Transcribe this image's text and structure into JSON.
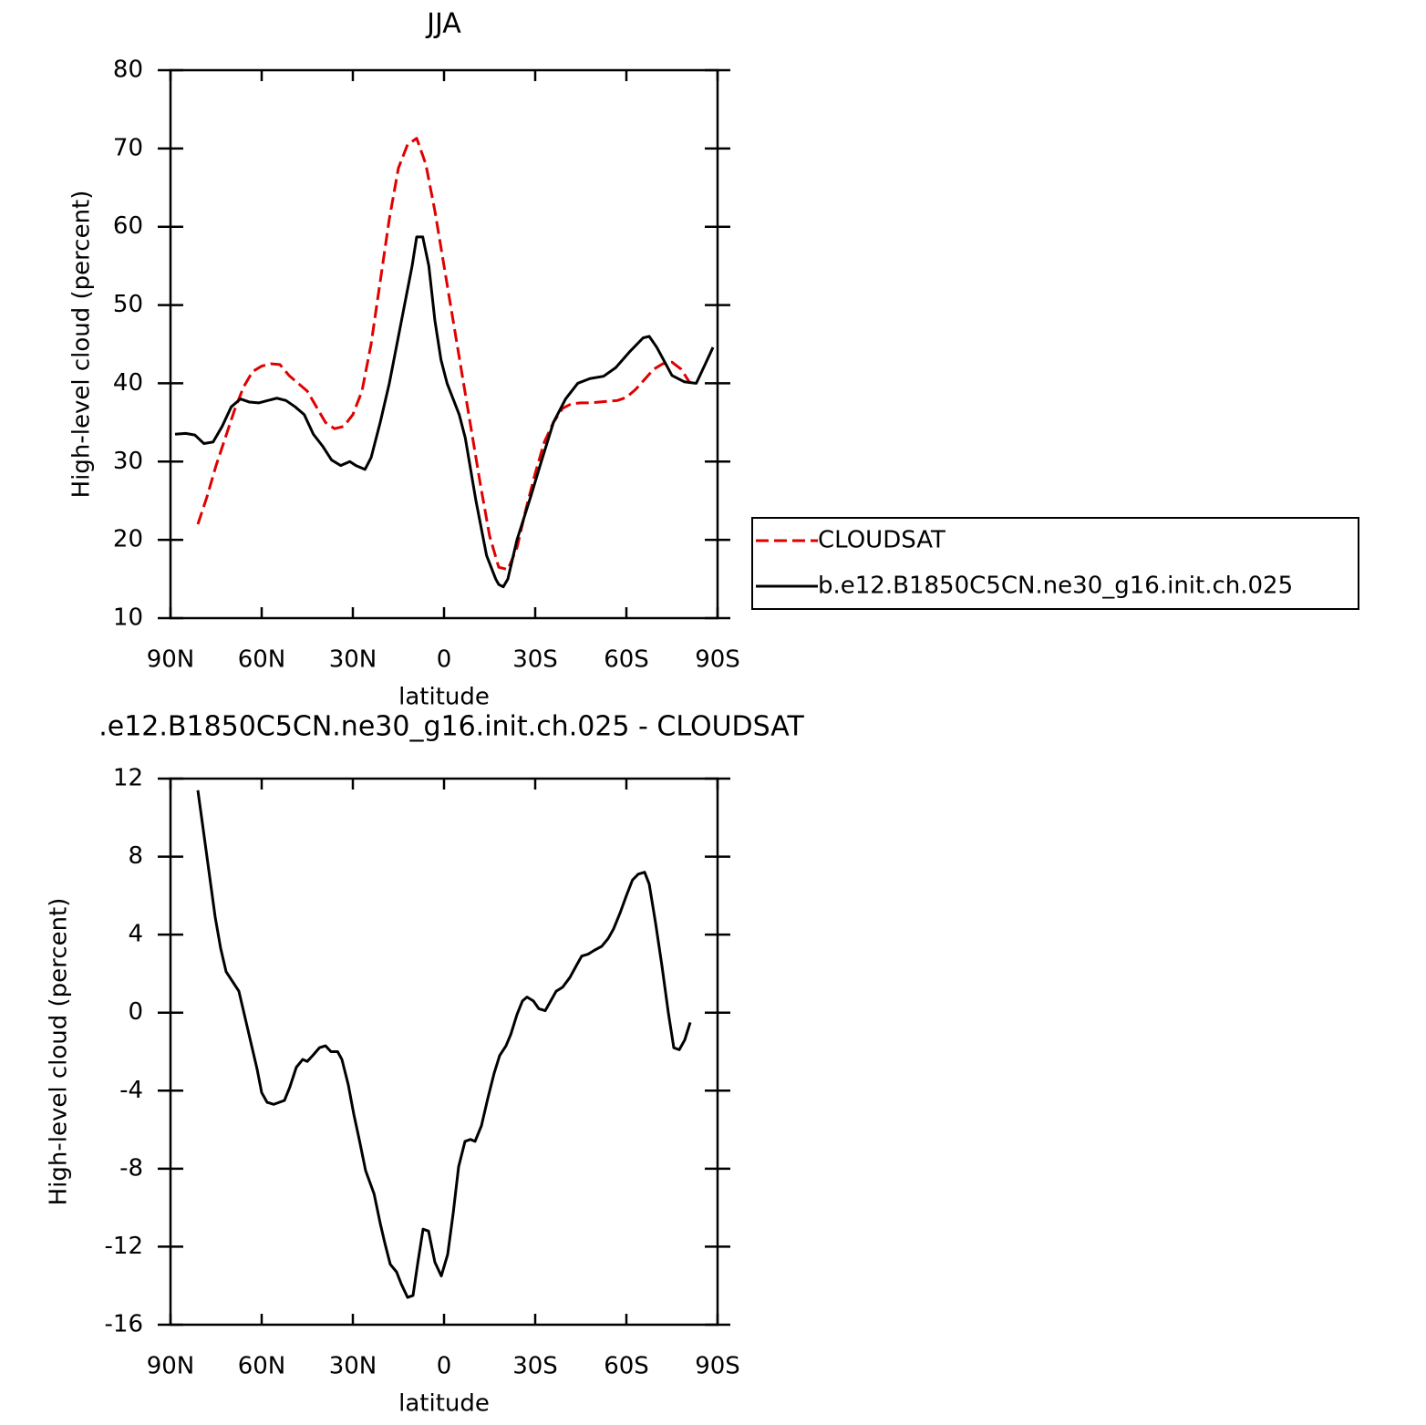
{
  "chart_data": [
    {
      "type": "line",
      "title": "JJA",
      "xlabel": "latitude",
      "ylabel": "High-level cloud (percent)",
      "xlim": [
        90,
        -90
      ],
      "xticks": [
        {
          "value": 90,
          "label": "90N"
        },
        {
          "value": 60,
          "label": "60N"
        },
        {
          "value": 30,
          "label": "30N"
        },
        0,
        {
          "value": -30,
          "label": "30S"
        },
        {
          "value": -60,
          "label": "60S"
        },
        {
          "value": -90,
          "label": "90S"
        }
      ],
      "ylim": [
        10,
        80
      ],
      "yticks": [
        10,
        20,
        30,
        40,
        50,
        60,
        70,
        80
      ],
      "legend": "right",
      "series": [
        {
          "name": "CLOUDSAT",
          "color": "#e00000",
          "dashed": true,
          "x": [
            81,
            78,
            75,
            72,
            69,
            66,
            63,
            60,
            57,
            54,
            51,
            48,
            45,
            42,
            39,
            36,
            33,
            30,
            27,
            24,
            21,
            18,
            15,
            12,
            9,
            6,
            3,
            0,
            -3,
            -6,
            -9,
            -12,
            -15,
            -18,
            -21,
            -24,
            -27,
            -30,
            -33,
            -36,
            -39,
            -42,
            -45,
            -48,
            -51,
            -54,
            -57,
            -60,
            -63,
            -66,
            -69,
            -72,
            -75,
            -78,
            -81
          ],
          "values": [
            22,
            25.5,
            29.5,
            33,
            36.5,
            39.5,
            41.5,
            42.2,
            42.5,
            42.4,
            41,
            40,
            39,
            37,
            35,
            34.2,
            34.5,
            36,
            39,
            45,
            53,
            61,
            67.5,
            70.5,
            71.3,
            68,
            62,
            55,
            48,
            41,
            34,
            27,
            20.5,
            16.5,
            16.2,
            19,
            24,
            28.5,
            32.5,
            35,
            36.8,
            37.4,
            37.5,
            37.5,
            37.6,
            37.7,
            37.8,
            38.2,
            39.2,
            40.5,
            41.8,
            42.5,
            42.7,
            41.8,
            40
          ]
        },
        {
          "name": "b.e12.B1850C5CN.ne30_g16.init.ch.025",
          "color": "#000000",
          "dashed": false,
          "x": [
            88.5,
            85,
            82,
            79,
            76,
            73,
            70,
            67,
            64,
            61,
            58,
            55,
            52,
            49,
            46,
            43,
            40,
            37,
            34,
            31,
            29,
            26,
            24,
            21,
            18,
            14,
            10.5,
            9,
            7,
            5,
            3,
            1,
            -1,
            -5,
            -7,
            -10.5,
            -14,
            -17,
            -18,
            -19.5,
            -21,
            -24,
            -28.5,
            -32,
            -36,
            -40,
            -44,
            -48,
            -52.5,
            -56.5,
            -61,
            -65.5,
            -67.5,
            -70,
            -75,
            -79,
            -83,
            -86,
            -88.5
          ],
          "values": [
            33.5,
            33.6,
            33.4,
            32.3,
            32.5,
            34.5,
            37,
            38,
            37.6,
            37.5,
            37.8,
            38.1,
            37.8,
            37,
            36,
            33.5,
            32,
            30.2,
            29.5,
            30,
            29.5,
            29,
            30.5,
            35,
            40,
            48,
            55,
            58.7,
            58.7,
            55,
            48,
            43,
            40,
            36,
            33,
            25,
            18,
            15,
            14.3,
            14,
            15,
            20,
            25.5,
            30,
            35,
            38,
            40,
            40.6,
            40.9,
            42,
            44,
            45.8,
            46,
            44.6,
            41,
            40.2,
            40,
            42.5,
            44.6
          ]
        }
      ]
    },
    {
      "type": "line",
      "title": ".e12.B1850C5CN.ne30_g16.init.ch.025 - CLOUDSAT",
      "xlabel": "latitude",
      "ylabel": "High-level cloud (percent)",
      "xlim": [
        90,
        -90
      ],
      "xticks": [
        {
          "value": 90,
          "label": "90N"
        },
        {
          "value": 60,
          "label": "60N"
        },
        {
          "value": 30,
          "label": "30N"
        },
        0,
        {
          "value": -30,
          "label": "30S"
        },
        {
          "value": -60,
          "label": "60S"
        },
        {
          "value": -90,
          "label": "90S"
        }
      ],
      "ylim": [
        -16,
        12
      ],
      "yticks": [
        -16,
        -12,
        -8,
        -4,
        0,
        4,
        8,
        12
      ],
      "series": [
        {
          "color": "#000000",
          "dashed": false,
          "x": [
            81,
            79.5,
            75.3,
            73.5,
            71.7,
            67.5,
            64.5,
            61.5,
            60,
            58.2,
            56,
            52.5,
            50.7,
            48.6,
            46.5,
            45,
            43.2,
            41,
            39,
            37.2,
            35,
            33.6,
            31.5,
            29.7,
            27.9,
            25.8,
            23,
            21,
            19.5,
            17.7,
            15.6,
            14.1,
            12,
            10.2,
            8.7,
            6.9,
            5.1,
            3,
            0.9,
            -1.2,
            -3,
            -4.8,
            -6.9,
            -8.7,
            -10.2,
            -12.3,
            -14.4,
            -16.5,
            -18.3,
            -20.4,
            -22,
            -24,
            -25.8,
            -27.3,
            -29.4,
            -31.2,
            -33.3,
            -35.1,
            -36.9,
            -39,
            -41.4,
            -43.5,
            -45.3,
            -47.4,
            -49.5,
            -51.9,
            -54,
            -55.8,
            -57.9,
            -60,
            -62,
            -63.9,
            -66,
            -67.5,
            -69.6,
            -71.7,
            -73.8,
            -75.6,
            -77.4,
            -79.2,
            -81
          ],
          "values": [
            11.4,
            9.7,
            4.9,
            3.3,
            2.1,
            1.1,
            -0.9,
            -2.9,
            -4.1,
            -4.6,
            -4.7,
            -4.5,
            -3.8,
            -2.8,
            -2.4,
            -2.5,
            -2.2,
            -1.8,
            -1.7,
            -2.0,
            -2.0,
            -2.4,
            -3.7,
            -5.2,
            -6.5,
            -8.1,
            -9.3,
            -10.8,
            -11.8,
            -12.9,
            -13.3,
            -13.9,
            -14.6,
            -14.5,
            -12.9,
            -11.1,
            -11.2,
            -12.8,
            -13.5,
            -12.4,
            -10.3,
            -7.9,
            -6.6,
            -6.5,
            -6.6,
            -5.8,
            -4.4,
            -3.1,
            -2.2,
            -1.7,
            -1.1,
            -0.1,
            0.6,
            0.8,
            0.6,
            0.2,
            0.1,
            0.6,
            1.1,
            1.3,
            1.8,
            2.4,
            2.9,
            3.0,
            3.2,
            3.4,
            3.8,
            4.3,
            5.1,
            6.0,
            6.8,
            7.1,
            7.2,
            6.6,
            4.6,
            2.4,
            0.0,
            -1.8,
            -1.9,
            -1.4,
            -0.5
          ]
        }
      ]
    }
  ]
}
